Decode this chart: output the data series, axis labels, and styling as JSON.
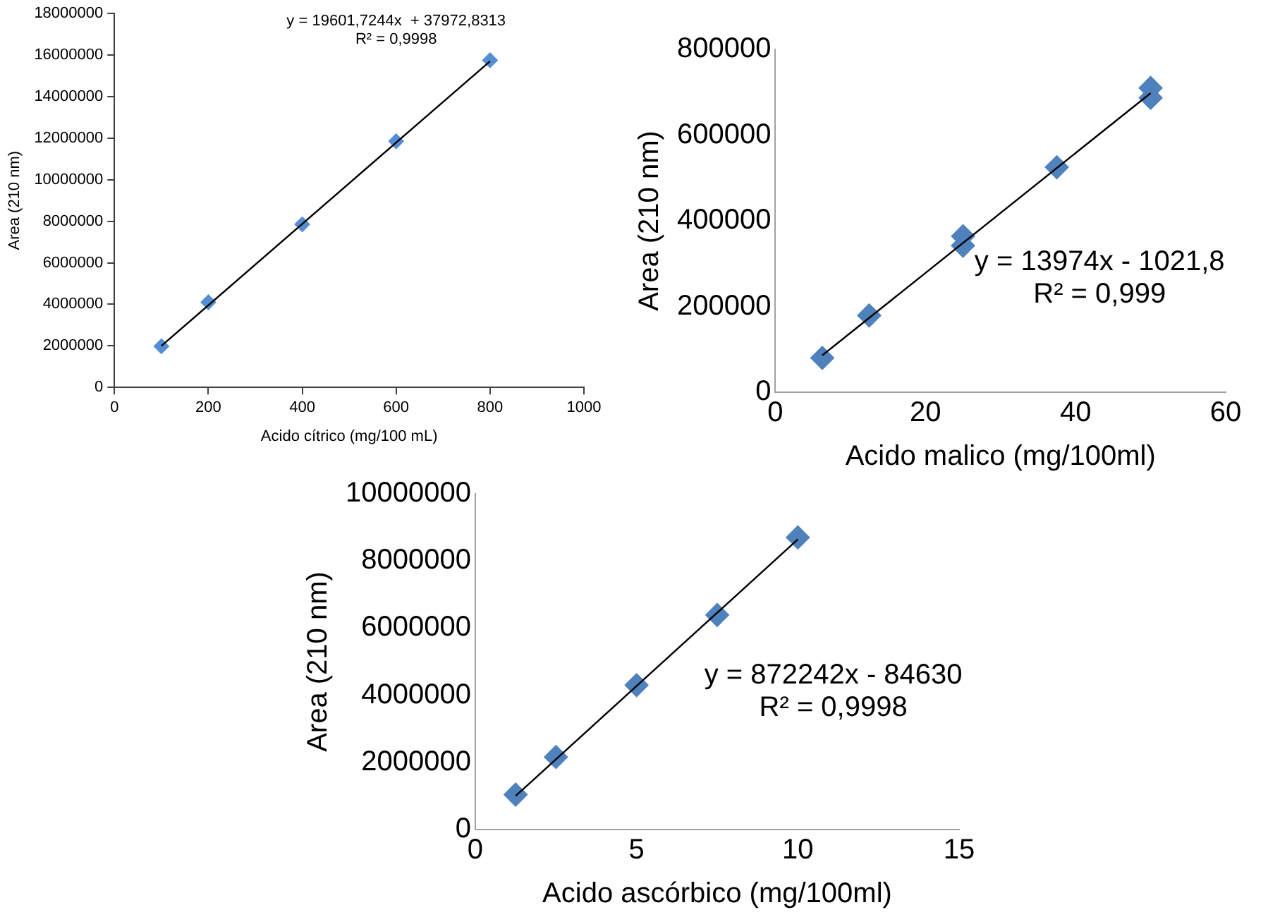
{
  "chart_data": [
    {
      "type": "scatter",
      "xlabel": "Acido cítrico (mg/100 mL)",
      "ylabel": "Area (210 nm)",
      "xlim": [
        0,
        1000
      ],
      "xticks": [
        0,
        200,
        400,
        600,
        800,
        1000
      ],
      "ylim": [
        0,
        18000000
      ],
      "yticks": [
        0,
        2000000,
        4000000,
        6000000,
        8000000,
        10000000,
        12000000,
        14000000,
        16000000,
        18000000
      ],
      "grid": false,
      "legend": false,
      "annotations": [
        "y = 19601,7244x  + 37972,8313",
        "R² = 0,9998"
      ],
      "series": [
        {
          "color": "#558ed5",
          "marker": "diamond",
          "x": [
            100,
            200,
            400,
            600,
            800
          ],
          "values": [
            1980000,
            4100000,
            7850000,
            11850000,
            15750000
          ]
        },
        {
          "type": "line",
          "color": "#000000",
          "marker": "none",
          "x": [
            100,
            800
          ],
          "values": [
            2000000,
            15700000
          ]
        }
      ]
    },
    {
      "type": "scatter",
      "xlabel": "Acido malico (mg/100ml)",
      "ylabel": "Area (210 nm)",
      "xlim": [
        0,
        60
      ],
      "xticks": [
        0,
        20,
        40,
        60
      ],
      "ylim": [
        0,
        800000
      ],
      "yticks": [
        0,
        200000,
        400000,
        600000,
        800000
      ],
      "grid": false,
      "legend": false,
      "annotations": [
        "y = 13974x - 1021,8",
        "R² = 0,999"
      ],
      "series": [
        {
          "color": "#4f81bd",
          "marker": "diamond",
          "x": [
            6.25,
            12.5,
            25,
            25,
            37.5,
            50,
            50
          ],
          "values": [
            80000,
            179000,
            364000,
            342000,
            525000,
            710000,
            687000
          ]
        },
        {
          "type": "line",
          "color": "#000000",
          "marker": "none",
          "x": [
            6.25,
            50
          ],
          "values": [
            86000,
            698000
          ]
        }
      ]
    },
    {
      "type": "scatter",
      "xlabel": "Acido ascórbico (mg/100ml)",
      "ylabel": "Area (210 nm)",
      "xlim": [
        0,
        15
      ],
      "xticks": [
        0,
        5,
        10,
        15
      ],
      "ylim": [
        0,
        10000000
      ],
      "yticks": [
        0,
        2000000,
        4000000,
        6000000,
        8000000,
        10000000
      ],
      "grid": false,
      "legend": false,
      "annotations": [
        "y = 872242x - 84630",
        "R² = 0,9998"
      ],
      "series": [
        {
          "color": "#4f81bd",
          "marker": "diamond",
          "x": [
            1.25,
            2.5,
            5,
            7.5,
            10
          ],
          "values": [
            1040000,
            2160000,
            4300000,
            6390000,
            8700000
          ]
        },
        {
          "type": "line",
          "color": "#000000",
          "marker": "none",
          "x": [
            1.25,
            10
          ],
          "values": [
            1000000,
            8640000
          ]
        }
      ]
    }
  ]
}
